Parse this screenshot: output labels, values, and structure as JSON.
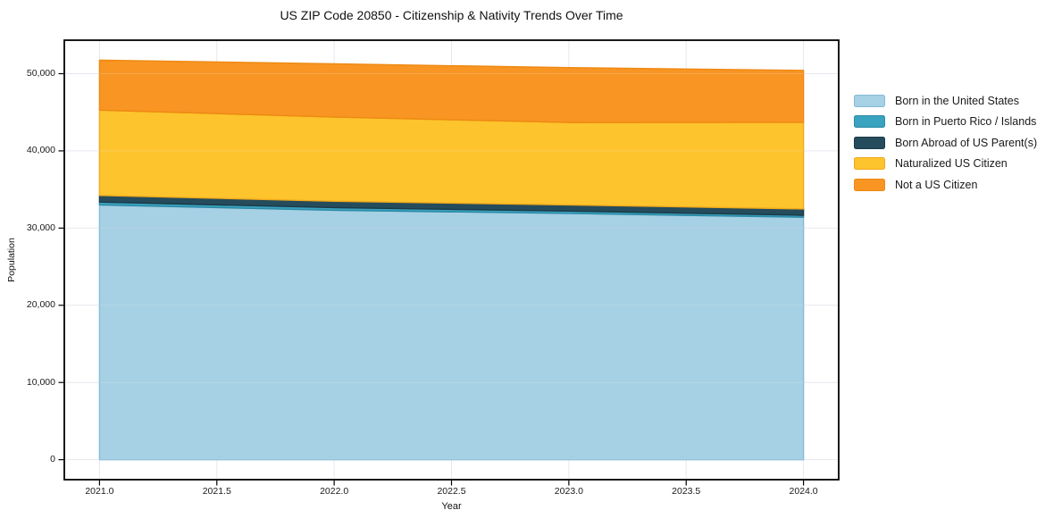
{
  "page": {
    "background": "#ffffff"
  },
  "chart_data": {
    "type": "area",
    "stacked": true,
    "title": "US ZIP Code 20850 - Citizenship & Nativity Trends Over Time",
    "xlabel": "Year",
    "ylabel": "Population",
    "x": [
      2021,
      2022,
      2023,
      2024
    ],
    "series": [
      {
        "name": "Born in the United States",
        "color": "#a6d0e4",
        "edge": "#85bcd8",
        "values": [
          33000,
          32300,
          31900,
          31400
        ]
      },
      {
        "name": "Born in Puerto Rico / Islands",
        "color": "#3aa3c0",
        "edge": "#2b8aa5",
        "values": [
          370,
          350,
          300,
          260
        ]
      },
      {
        "name": "Born Abroad of US Parent(s)",
        "color": "#254c5c",
        "edge": "#1b3a47",
        "values": [
          860,
          830,
          800,
          820
        ]
      },
      {
        "name": "Naturalized US Citizen",
        "color": "#fdc42d",
        "edge": "#f0a91c",
        "values": [
          11050,
          10900,
          10680,
          11220
        ]
      },
      {
        "name": "Not a US Citizen",
        "color": "#f89523",
        "edge": "#ee8912",
        "values": [
          6470,
          6900,
          7100,
          6730
        ]
      }
    ],
    "totals": [
      51750,
      51280,
      50780,
      50430
    ],
    "xlim": [
      2020.85,
      2024.15
    ],
    "ylim": [
      -2587,
      54338
    ],
    "xticks": {
      "values": [
        2021,
        2021.5,
        2022,
        2022.5,
        2023,
        2023.5,
        2024
      ],
      "labels": [
        "2021.0",
        "2021.5",
        "2022.0",
        "2022.5",
        "2023.0",
        "2023.5",
        "2024.0"
      ]
    },
    "yticks": {
      "values": [
        0,
        10000,
        20000,
        30000,
        40000,
        50000
      ],
      "labels": [
        "0",
        "10,000",
        "20,000",
        "30,000",
        "40,000",
        "50,000"
      ]
    },
    "grid": true,
    "grid_color": "#e7e7f0",
    "spine_color": "#000000",
    "legend_position": "right"
  }
}
